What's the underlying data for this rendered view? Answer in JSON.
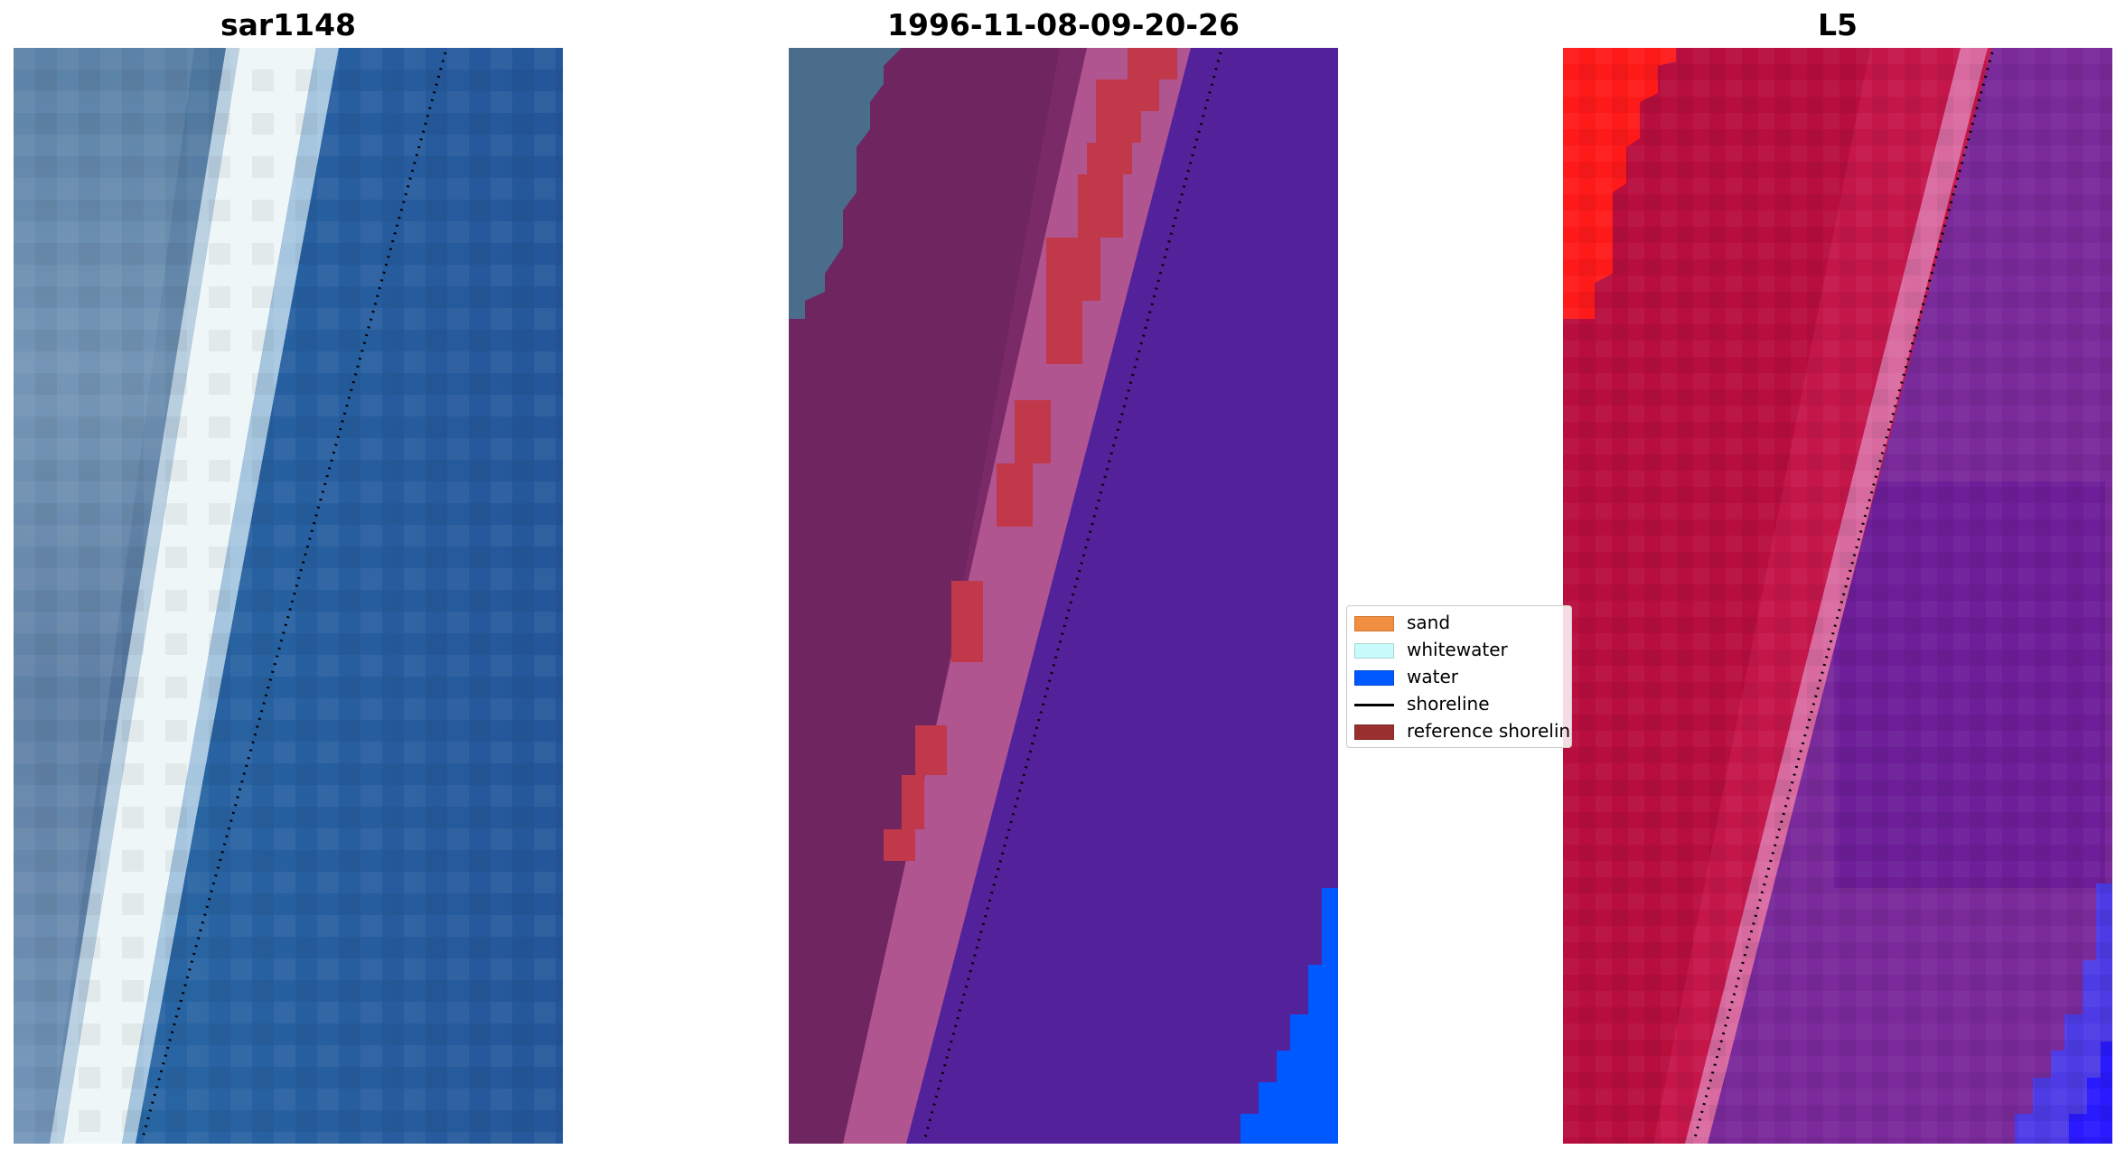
{
  "panels": [
    {
      "title": "sar1148"
    },
    {
      "title": "1996-11-08-09-20-26"
    },
    {
      "title": "L5"
    }
  ],
  "legend": {
    "placement": "center-right of middle panel",
    "entries": [
      {
        "label": "sand",
        "color": "#f28e3f",
        "kind": "patch"
      },
      {
        "label": "whitewater",
        "color": "#c8fbfb",
        "kind": "patch"
      },
      {
        "label": "water",
        "color": "#0059ff",
        "kind": "patch"
      },
      {
        "label": "shoreline",
        "color": "#000000",
        "kind": "line"
      },
      {
        "label": "reference shoreline",
        "color": "#9a2f30",
        "kind": "patch"
      }
    ]
  },
  "colors": {
    "sea_blue": "#2b66a6",
    "whitewater": "#eef6f8",
    "classified_purple": "#53229a",
    "classified_land": "#7a2a66",
    "reference_red": "#c0384a",
    "index_red": "#c5164a",
    "index_purple": "#7a2a9a",
    "water_blue": "#0059ff"
  }
}
